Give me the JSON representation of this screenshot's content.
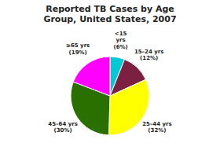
{
  "chart_data": {
    "type": "pie",
    "title": "Reported TB Cases by Age\nGroup, United States, 2007",
    "categories": [
      "<15\nyrs\n(6%)",
      "15–24 yrs\n(12%)",
      "25–44 yrs\n(32%)",
      "45–64 yrs\n(30%)",
      "≥65 yrs\n(19%)"
    ],
    "values": [
      6,
      12,
      32,
      30,
      19
    ],
    "colors": [
      "#00c8d4",
      "#7b2040",
      "#ffff00",
      "#2a7000",
      "#ff00ff"
    ]
  }
}
